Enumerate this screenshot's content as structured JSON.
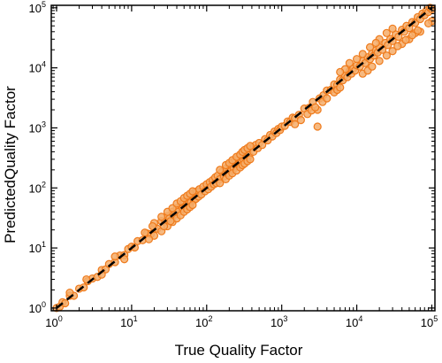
{
  "colors": {
    "marker_fill": "#f5ad6a",
    "marker_edge": "#ef7b1c",
    "fit_line": "#000000",
    "frame": "#000000",
    "background": "#ffffff"
  },
  "chart_data": {
    "type": "scatter",
    "title": "",
    "xlabel": "True Quality Factor",
    "ylabel": "PredictedQuality Factor",
    "xscale": "log",
    "yscale": "log",
    "xlim": [
      0.85,
      110000
    ],
    "ylim": [
      0.9,
      110000
    ],
    "grid": false,
    "legend": "none",
    "x_ticks": [
      {
        "value": 1,
        "base": "10",
        "exp": "0"
      },
      {
        "value": 10,
        "base": "10",
        "exp": "1"
      },
      {
        "value": 100,
        "base": "10",
        "exp": "2"
      },
      {
        "value": 1000,
        "base": "10",
        "exp": "3"
      },
      {
        "value": 10000,
        "base": "10",
        "exp": "4"
      },
      {
        "value": 100000,
        "base": "10",
        "exp": "5"
      }
    ],
    "y_ticks": [
      {
        "value": 1,
        "base": "10",
        "exp": "0"
      },
      {
        "value": 10,
        "base": "10",
        "exp": "1"
      },
      {
        "value": 100,
        "base": "10",
        "exp": "2"
      },
      {
        "value": 1000,
        "base": "10",
        "exp": "3"
      },
      {
        "value": 10000,
        "base": "10",
        "exp": "4"
      },
      {
        "value": 100000,
        "base": "10",
        "exp": "5"
      }
    ],
    "reference_line": {
      "style": "dashed",
      "points": [
        [
          1,
          1
        ],
        [
          100000,
          100000
        ]
      ]
    },
    "series": [
      {
        "marker": "circle",
        "points": [
          [
            1.0,
            1.0
          ],
          [
            1.1,
            1.05
          ],
          [
            1.2,
            1.25
          ],
          [
            1.3,
            1.2
          ],
          [
            1.5,
            1.6
          ],
          [
            1.7,
            1.6
          ],
          [
            2.0,
            2.1
          ],
          [
            2.3,
            2.2
          ],
          [
            2.6,
            2.8
          ],
          [
            3.0,
            3.1
          ],
          [
            3.5,
            3.3
          ],
          [
            4.0,
            4.3
          ],
          [
            4.5,
            4.4
          ],
          [
            5.0,
            5.4
          ],
          [
            6.0,
            5.8
          ],
          [
            7.0,
            7.5
          ],
          [
            8.0,
            7.6
          ],
          [
            9.0,
            9.6
          ],
          [
            10,
            10.5
          ],
          [
            11,
            10.2
          ],
          [
            12,
            13
          ],
          [
            14,
            13.5
          ],
          [
            16,
            17.5
          ],
          [
            18,
            17
          ],
          [
            20,
            22
          ],
          [
            22,
            21
          ],
          [
            25,
            28
          ],
          [
            28,
            27
          ],
          [
            30,
            34
          ],
          [
            32,
            31
          ],
          [
            35,
            40
          ],
          [
            38,
            36
          ],
          [
            40,
            46
          ],
          [
            42,
            40
          ],
          [
            45,
            52
          ],
          [
            48,
            45
          ],
          [
            50,
            60
          ],
          [
            52,
            48
          ],
          [
            55,
            65
          ],
          [
            58,
            55
          ],
          [
            60,
            72
          ],
          [
            62,
            58
          ],
          [
            65,
            78
          ],
          [
            68,
            63
          ],
          [
            70,
            85
          ],
          [
            72,
            66
          ],
          [
            75,
            88
          ],
          [
            78,
            72
          ],
          [
            80,
            95
          ],
          [
            85,
            78
          ],
          [
            90,
            105
          ],
          [
            95,
            88
          ],
          [
            100,
            115
          ],
          [
            105,
            95
          ],
          [
            110,
            125
          ],
          [
            115,
            105
          ],
          [
            120,
            135
          ],
          [
            125,
            115
          ],
          [
            130,
            150
          ],
          [
            135,
            120
          ],
          [
            140,
            160
          ],
          [
            150,
            140
          ],
          [
            160,
            185
          ],
          [
            170,
            155
          ],
          [
            180,
            210
          ],
          [
            190,
            175
          ],
          [
            200,
            240
          ],
          [
            210,
            190
          ],
          [
            220,
            270
          ],
          [
            230,
            210
          ],
          [
            240,
            290
          ],
          [
            250,
            230
          ],
          [
            260,
            320
          ],
          [
            270,
            250
          ],
          [
            280,
            340
          ],
          [
            290,
            270
          ],
          [
            300,
            360
          ],
          [
            310,
            290
          ],
          [
            320,
            380
          ],
          [
            330,
            310
          ],
          [
            350,
            420
          ],
          [
            370,
            350
          ],
          [
            400,
            470
          ],
          [
            420,
            400
          ],
          [
            450,
            520
          ],
          [
            480,
            460
          ],
          [
            500,
            560
          ],
          [
            550,
            520
          ],
          [
            600,
            650
          ],
          [
            650,
            620
          ],
          [
            700,
            760
          ],
          [
            750,
            720
          ],
          [
            800,
            870
          ],
          [
            850,
            820
          ],
          [
            900,
            960
          ],
          [
            950,
            920
          ],
          [
            1000,
            1050
          ],
          [
            1100,
            1080
          ],
          [
            1200,
            1280
          ],
          [
            1300,
            1260
          ],
          [
            1400,
            1480
          ],
          [
            1500,
            1450
          ],
          [
            1700,
            1650
          ],
          [
            2000,
            2100
          ],
          [
            2300,
            2150
          ],
          [
            2600,
            2700
          ],
          [
            3000,
            1050
          ],
          [
            3000,
            2000
          ],
          [
            3200,
            3100
          ],
          [
            3600,
            3500
          ],
          [
            4000,
            4200
          ],
          [
            4500,
            4300
          ],
          [
            5000,
            5300
          ],
          [
            5500,
            5200
          ],
          [
            6000,
            6400
          ],
          [
            6500,
            6200
          ],
          [
            7000,
            7500
          ],
          [
            7500,
            7000
          ],
          [
            8000,
            8800
          ],
          [
            8500,
            8000
          ],
          [
            9000,
            9800
          ],
          [
            9500,
            9000
          ],
          [
            10000,
            11000
          ],
          [
            11000,
            10500
          ],
          [
            12000,
            13000
          ],
          [
            13000,
            12000
          ],
          [
            14000,
            15000
          ],
          [
            15000,
            14000
          ],
          [
            16000,
            17500
          ],
          [
            17000,
            16000
          ],
          [
            18000,
            19500
          ],
          [
            19000,
            18000
          ],
          [
            20000,
            22000
          ],
          [
            22000,
            20000
          ],
          [
            24000,
            26000
          ],
          [
            26000,
            24000
          ],
          [
            28000,
            30000
          ],
          [
            30000,
            28000
          ],
          [
            33000,
            36000
          ],
          [
            36000,
            33000
          ],
          [
            40000,
            43000
          ],
          [
            43000,
            40000
          ],
          [
            46000,
            50000
          ],
          [
            50000,
            46000
          ],
          [
            55000,
            58000
          ],
          [
            60000,
            56000
          ],
          [
            65000,
            70000
          ],
          [
            70000,
            65000
          ],
          [
            75000,
            80000
          ],
          [
            80000,
            75000
          ],
          [
            85000,
            90000
          ],
          [
            90000,
            85000
          ],
          [
            95000,
            100000
          ],
          [
            100000,
            95000
          ],
          [
            100000,
            60000
          ],
          [
            90000,
            55000
          ],
          [
            70000,
            40000
          ],
          [
            60000,
            38000
          ],
          [
            50000,
            30000
          ],
          [
            40000,
            25000
          ],
          [
            30000,
            45000
          ],
          [
            25000,
            38000
          ],
          [
            20000,
            30000
          ],
          [
            18000,
            26000
          ],
          [
            15000,
            22000
          ],
          [
            12000,
            17000
          ],
          [
            10000,
            14000
          ],
          [
            8000,
            12000
          ],
          [
            7000,
            9500
          ],
          [
            6000,
            8500
          ],
          [
            12000,
            8000
          ],
          [
            14000,
            9000
          ],
          [
            16000,
            10500
          ],
          [
            20000,
            13000
          ],
          [
            25000,
            16000
          ],
          [
            30000,
            19000
          ],
          [
            35000,
            23000
          ],
          [
            45000,
            29000
          ],
          [
            55000,
            35000
          ],
          [
            65000,
            42000
          ],
          [
            20,
            26
          ],
          [
            25,
            33
          ],
          [
            30,
            40
          ],
          [
            35,
            46
          ],
          [
            40,
            55
          ],
          [
            45,
            60
          ],
          [
            50,
            68
          ],
          [
            55,
            74
          ],
          [
            60,
            80
          ],
          [
            65,
            88
          ],
          [
            20,
            16
          ],
          [
            25,
            19
          ],
          [
            30,
            23
          ],
          [
            35,
            27
          ],
          [
            40,
            31
          ],
          [
            45,
            35
          ],
          [
            50,
            40
          ],
          [
            55,
            44
          ],
          [
            60,
            48
          ],
          [
            65,
            52
          ],
          [
            150,
            200
          ],
          [
            180,
            240
          ],
          [
            200,
            260
          ],
          [
            220,
            290
          ],
          [
            250,
            330
          ],
          [
            280,
            360
          ],
          [
            300,
            400
          ],
          [
            320,
            430
          ],
          [
            350,
            460
          ],
          [
            380,
            500
          ],
          [
            150,
            120
          ],
          [
            180,
            140
          ],
          [
            200,
            160
          ],
          [
            220,
            175
          ],
          [
            250,
            195
          ],
          [
            280,
            220
          ],
          [
            300,
            240
          ],
          [
            320,
            255
          ],
          [
            350,
            280
          ],
          [
            380,
            300
          ],
          [
            1500,
            1150
          ],
          [
            1800,
            1350
          ],
          [
            2200,
            1700
          ],
          [
            2500,
            1950
          ],
          [
            2800,
            2200
          ],
          [
            3500,
            2700
          ],
          [
            4000,
            3100
          ],
          [
            5000,
            3900
          ],
          [
            5500,
            4300
          ],
          [
            6000,
            4700
          ],
          [
            1.5,
            1.8
          ],
          [
            2.5,
            3.0
          ],
          [
            4,
            3.6
          ],
          [
            6,
            7.2
          ],
          [
            8,
            6.5
          ],
          [
            15,
            18
          ],
          [
            17,
            14
          ],
          [
            19,
            23
          ],
          [
            27,
            23
          ],
          [
            33,
            28
          ]
        ]
      }
    ]
  }
}
